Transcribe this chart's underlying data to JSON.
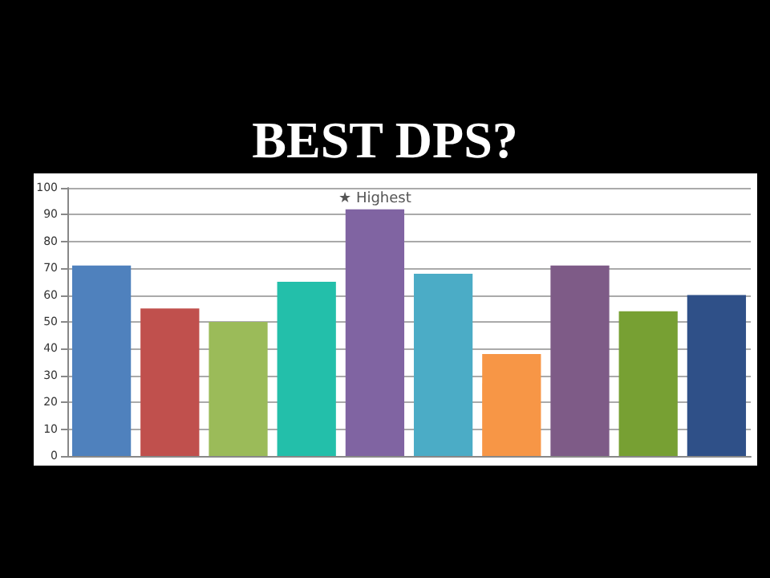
{
  "chart_data": {
    "type": "bar",
    "title": "BEST DPS?",
    "categories": [
      null,
      null,
      null,
      null,
      null,
      null,
      null,
      null,
      null,
      null
    ],
    "values": [
      71,
      55,
      50,
      65,
      92,
      68,
      38,
      71,
      54,
      60
    ],
    "colors": [
      "#4f81bd",
      "#c0504d",
      "#9bbb59",
      "#23bfaa",
      "#8064a2",
      "#4bacc6",
      "#f79646",
      "#7e5b87",
      "#77a033",
      "#2f5088"
    ],
    "ylim": [
      0,
      100
    ],
    "yticks": [
      0,
      10,
      20,
      30,
      40,
      50,
      60,
      70,
      80,
      90,
      100
    ],
    "grid": true,
    "annotations": [
      {
        "text": "★ Highest",
        "y": 92
      }
    ]
  }
}
